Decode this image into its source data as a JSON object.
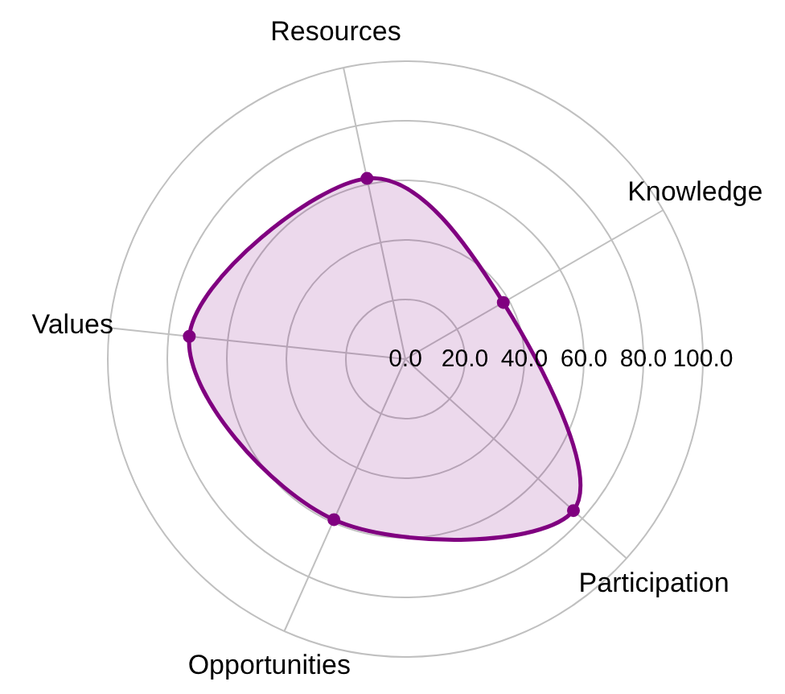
{
  "chart_data": {
    "type": "radar",
    "categories": [
      "Resources",
      "Knowledge",
      "Participation",
      "Opportunities",
      "Values"
    ],
    "series": [
      {
        "color": "#800080",
        "values": [
          62,
          38,
          76,
          59,
          73
        ]
      }
    ],
    "ylim": [
      0,
      100
    ],
    "yticks": [
      {
        "value": 0,
        "label": "0.0"
      },
      {
        "value": 20,
        "label": "20.0"
      },
      {
        "value": 40,
        "label": "40.0"
      },
      {
        "value": 60,
        "label": "60.0"
      },
      {
        "value": 80,
        "label": "80.0"
      },
      {
        "value": 100,
        "label": "100.0"
      }
    ],
    "grid": true,
    "marker": "circle",
    "line_style": "solid"
  }
}
